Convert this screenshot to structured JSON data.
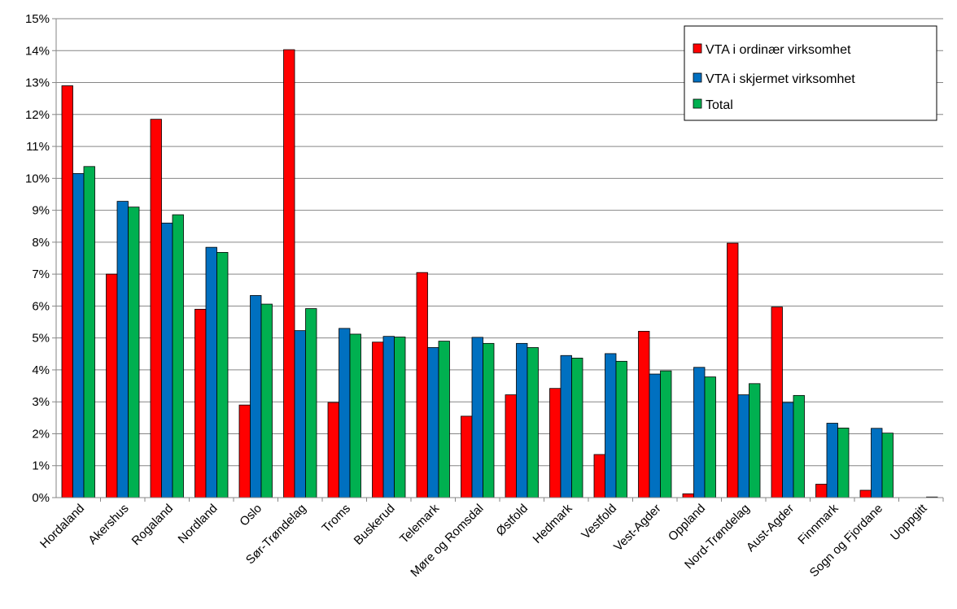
{
  "chart_data": {
    "type": "bar",
    "categories": [
      "Hordaland",
      "Akershus",
      "Rogaland",
      "Nordland",
      "Oslo",
      "Sør-Trøndelag",
      "Troms",
      "Buskerud",
      "Telemark",
      "Møre og Romsdal",
      "Østfold",
      "Hedmark",
      "Vestfold",
      "Vest-Agder",
      "Oppland",
      "Nord-Trøndelag",
      "Aust-Agder",
      "Finnmark",
      "Sogn og Fjordane",
      "Uoppgitt"
    ],
    "series": [
      {
        "name": "VTA i ordinær virksomhet",
        "color": "#ff0000",
        "values": [
          12.9,
          7.0,
          11.85,
          5.9,
          2.9,
          14.03,
          2.98,
          4.87,
          7.05,
          2.55,
          3.22,
          3.42,
          1.35,
          5.21,
          0.12,
          7.97,
          5.97,
          0.42,
          0.23,
          0.0
        ]
      },
      {
        "name": "VTA i skjermet virksomhet",
        "color": "#0070c0",
        "values": [
          10.15,
          9.28,
          8.6,
          7.84,
          6.33,
          5.23,
          5.3,
          5.05,
          4.7,
          5.02,
          4.83,
          4.45,
          4.51,
          3.87,
          4.08,
          3.22,
          2.98,
          2.33,
          2.17,
          0.0
        ]
      },
      {
        "name": "Total",
        "color": "#00b050",
        "values": [
          10.37,
          9.1,
          8.86,
          7.68,
          6.06,
          5.92,
          5.12,
          5.03,
          4.9,
          4.83,
          4.7,
          4.37,
          4.27,
          3.97,
          3.78,
          3.57,
          3.2,
          2.18,
          2.02,
          0.02
        ]
      }
    ],
    "yticks": [
      "0%",
      "1%",
      "2%",
      "3%",
      "4%",
      "5%",
      "6%",
      "7%",
      "8%",
      "9%",
      "10%",
      "11%",
      "12%",
      "13%",
      "14%",
      "15%"
    ],
    "ylim": [
      0,
      15
    ],
    "grid": true,
    "legend_position": "top-right",
    "title": "",
    "xlabel": "",
    "ylabel": ""
  }
}
